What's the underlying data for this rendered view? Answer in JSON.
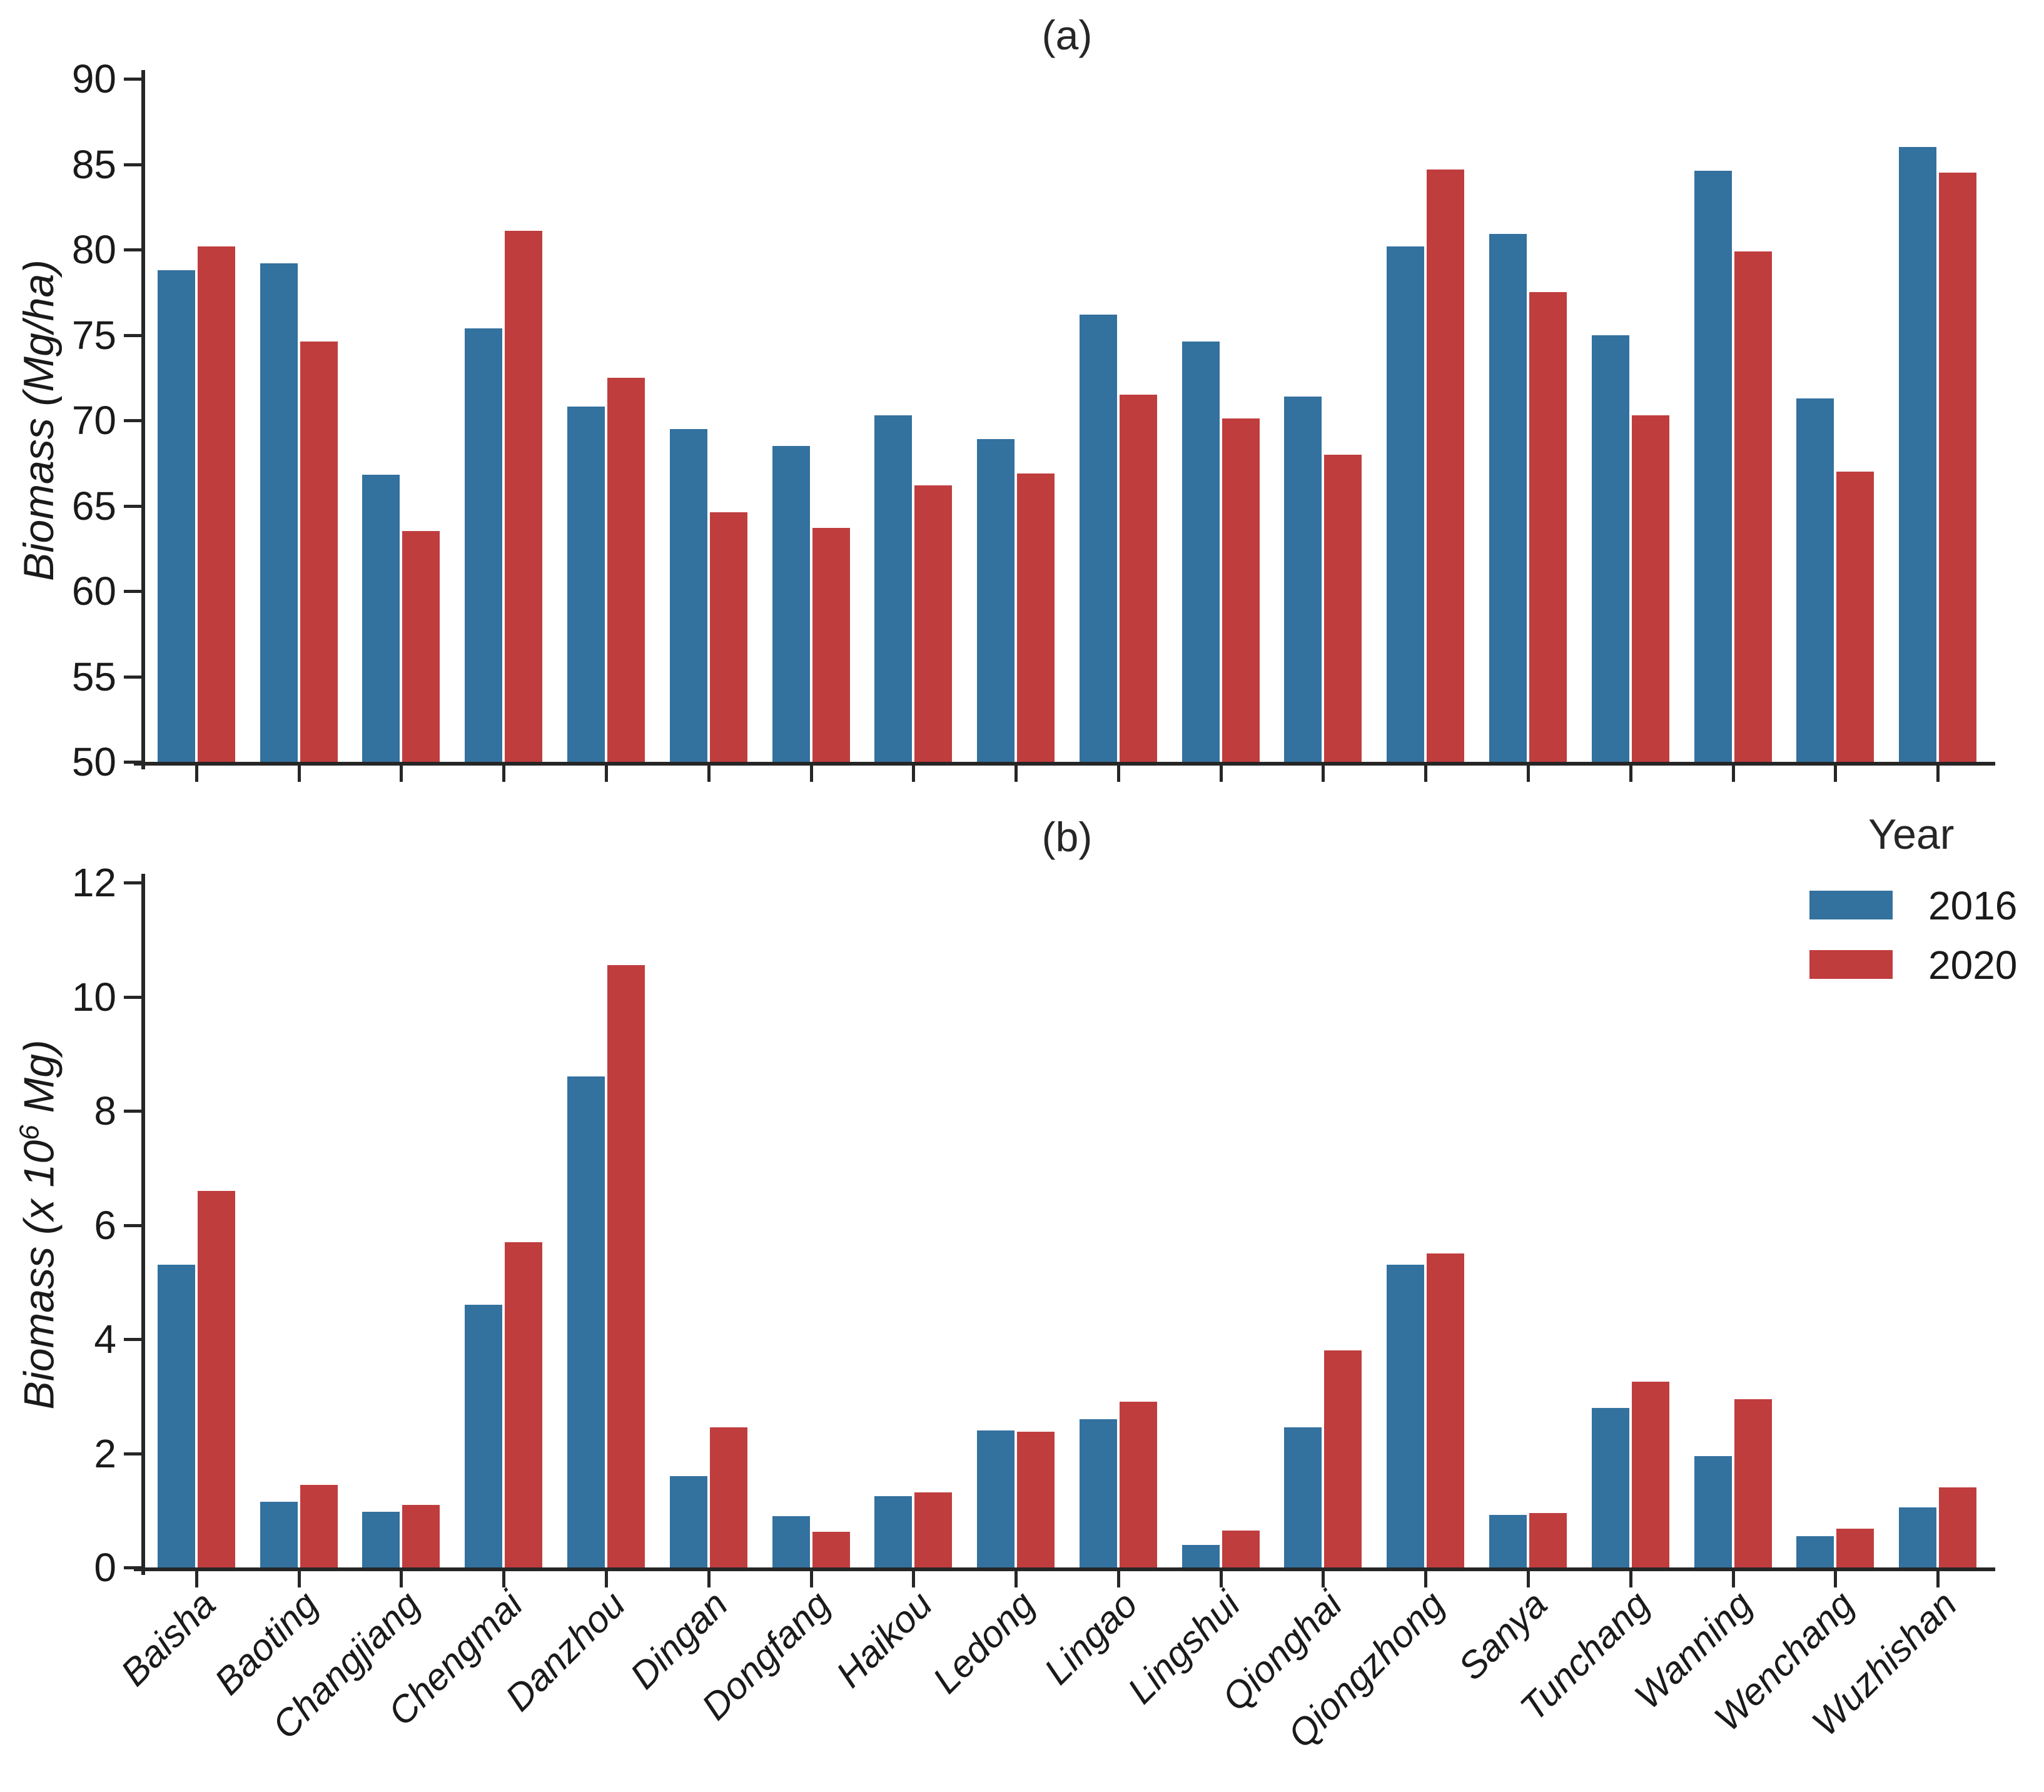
{
  "figure": {
    "panel_a_title": "(a)",
    "panel_b_title": "(b)"
  },
  "legend": {
    "title": "Year",
    "entries": [
      {
        "label": "2016",
        "color": "#33719F"
      },
      {
        "label": "2020",
        "color": "#C03D3E"
      }
    ]
  },
  "chart_data": [
    {
      "id": "a",
      "type": "bar",
      "title": "(a)",
      "ylabel": "Biomass (Mg/ha)",
      "ylim": [
        50,
        90
      ],
      "ytick_step": 5,
      "grid": false,
      "categories": [
        "Baisha",
        "Baoting",
        "Changjiang",
        "Chengmai",
        "Danzhou",
        "Dingan",
        "Dongfang",
        "Haikou",
        "Ledong",
        "Lingao",
        "Lingshui",
        "Qionghai",
        "Qiongzhong",
        "Sanya",
        "Tunchang",
        "Wanning",
        "Wenchang",
        "Wuzhishan"
      ],
      "series": [
        {
          "name": "2016",
          "color": "#33719F",
          "values": [
            78.8,
            79.2,
            66.8,
            75.4,
            70.8,
            69.5,
            68.5,
            70.3,
            68.9,
            76.2,
            74.6,
            71.4,
            80.2,
            80.9,
            75.0,
            84.6,
            71.3,
            86.0
          ]
        },
        {
          "name": "2020",
          "color": "#C03D3E",
          "values": [
            80.2,
            74.6,
            63.5,
            81.1,
            72.5,
            64.6,
            63.7,
            66.2,
            66.9,
            71.5,
            70.1,
            68.0,
            84.7,
            77.5,
            70.3,
            79.9,
            67.0,
            84.5
          ]
        }
      ],
      "show_x_labels": false,
      "legend_position": "none"
    },
    {
      "id": "b",
      "type": "bar",
      "title": "(b)",
      "ylabel": "Biomass (x 10⁶ Mg)",
      "ylabel_parts": {
        "pre": "Biomass (x 10",
        "sup": "6",
        "post": " Mg)"
      },
      "ylim": [
        0,
        12
      ],
      "ytick_step": 2,
      "grid": false,
      "categories": [
        "Baisha",
        "Baoting",
        "Changjiang",
        "Chengmai",
        "Danzhou",
        "Dingan",
        "Dongfang",
        "Haikou",
        "Ledong",
        "Lingao",
        "Lingshui",
        "Qionghai",
        "Qiongzhong",
        "Sanya",
        "Tunchang",
        "Wanning",
        "Wenchang",
        "Wuzhishan"
      ],
      "series": [
        {
          "name": "2016",
          "color": "#33719F",
          "values": [
            5.3,
            1.15,
            0.97,
            4.6,
            8.6,
            1.6,
            0.9,
            1.25,
            2.4,
            2.6,
            0.4,
            2.45,
            5.3,
            0.92,
            2.8,
            1.95,
            0.55,
            1.05
          ]
        },
        {
          "name": "2020",
          "color": "#C03D3E",
          "values": [
            6.6,
            1.45,
            1.1,
            5.7,
            10.55,
            2.45,
            0.62,
            1.32,
            2.38,
            2.9,
            0.65,
            3.8,
            5.5,
            0.95,
            3.25,
            2.95,
            0.68,
            1.4
          ]
        }
      ],
      "show_x_labels": true,
      "legend_position": "upper right"
    }
  ]
}
